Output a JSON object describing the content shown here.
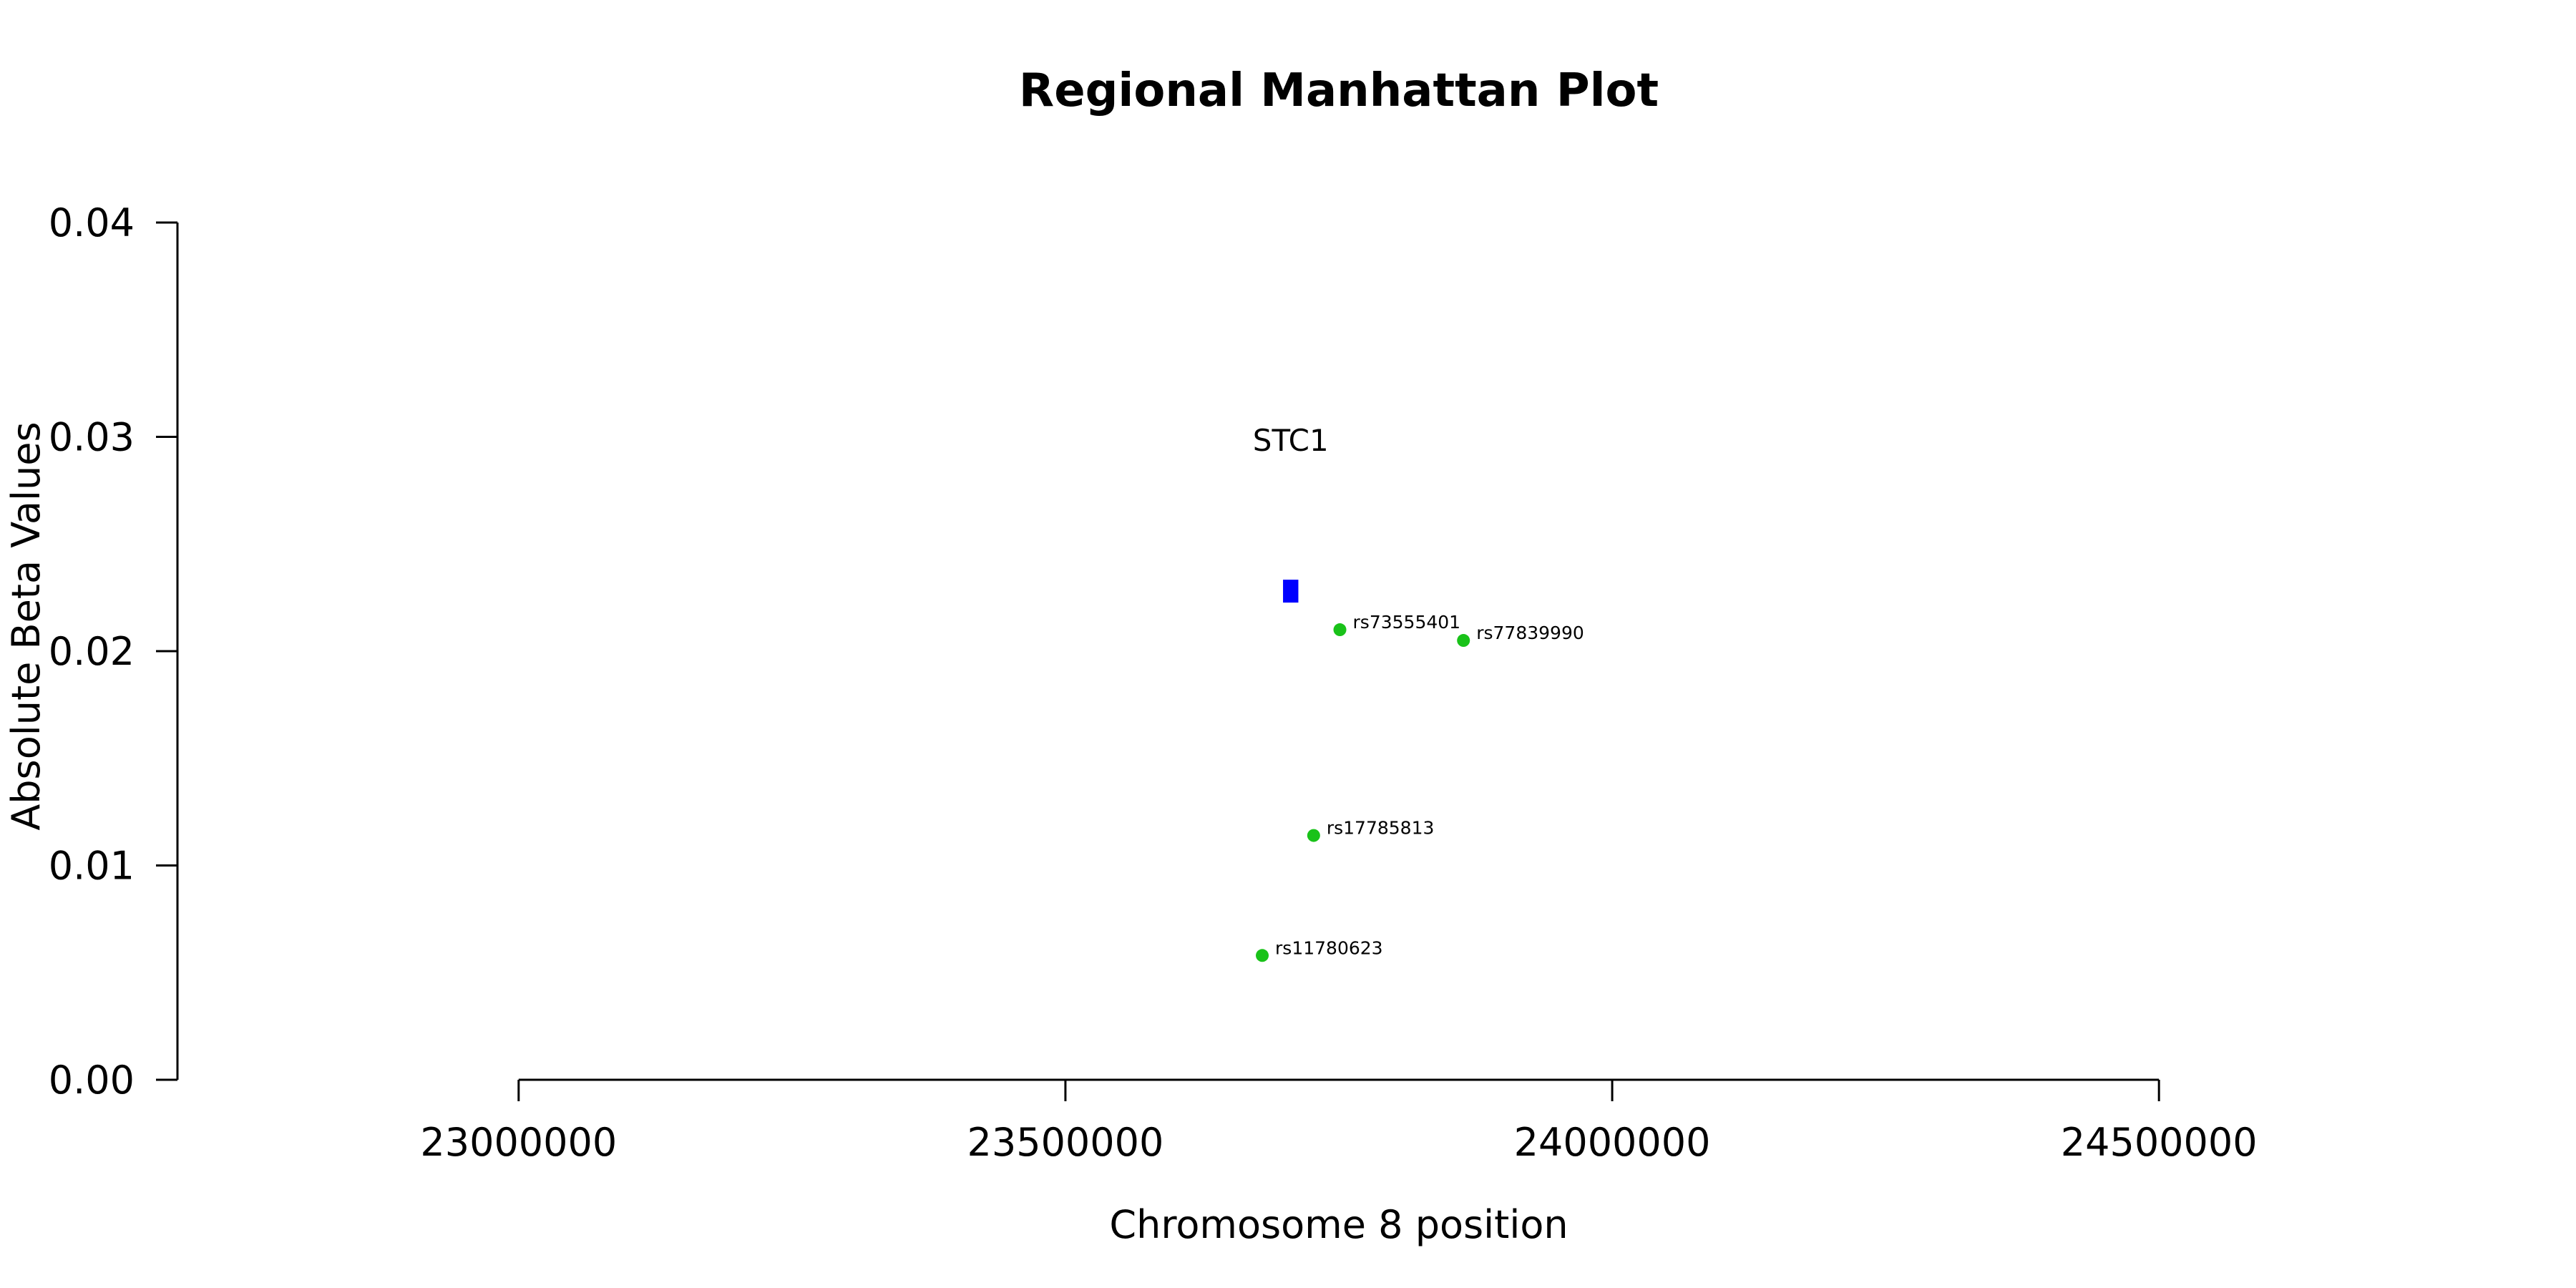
{
  "chart_data": {
    "type": "scatter",
    "title": "Regional Manhattan Plot",
    "xlabel": "Chromosome 8 position",
    "ylabel": "Absolute Beta Values",
    "xlim": [
      22688000,
      24812000
    ],
    "ylim": [
      0,
      0.04
    ],
    "xticks": [
      23000000,
      23500000,
      24000000,
      24500000
    ],
    "xtick_labels": [
      "23000000",
      "23500000",
      "24000000",
      "24500000"
    ],
    "yticks": [
      0,
      0.01,
      0.02,
      0.03,
      0.04
    ],
    "ytick_labels": [
      "0.00",
      "0.01",
      "0.02",
      "0.03",
      "0.04"
    ],
    "grid": false,
    "gene": {
      "name": "STC1",
      "x_start": 23699000,
      "x_end": 23713000,
      "y": 0.0228,
      "color": "#0000ff"
    },
    "snp_color": "#19c219",
    "points": [
      {
        "label": "rs73555401",
        "x": 23751000,
        "y": 0.021
      },
      {
        "label": "rs77839990",
        "x": 23864000,
        "y": 0.0205
      },
      {
        "label": "rs17785813",
        "x": 23727000,
        "y": 0.0114
      },
      {
        "label": "rs11780623",
        "x": 23680000,
        "y": 0.0058
      }
    ]
  }
}
